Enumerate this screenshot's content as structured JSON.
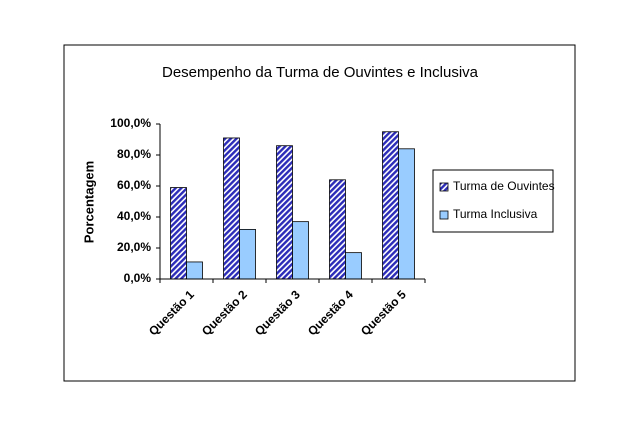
{
  "chart_data": {
    "type": "bar",
    "title": "Desempenho da Turma de Ouvintes e Inclusiva",
    "y_label": "Porcentagem",
    "categories": [
      "Questão 1",
      "Questão 2",
      "Questão 3",
      "Questão 4",
      "Questão 5"
    ],
    "series": [
      {
        "name": "Turma de Ouvintes",
        "color": "#2b2bb8",
        "pattern": "hatch",
        "values": [
          59,
          91,
          86,
          64,
          95
        ]
      },
      {
        "name": "Turma Inclusiva",
        "color": "#99ccff",
        "values": [
          11,
          32,
          37,
          17,
          84
        ]
      }
    ],
    "ylim": [
      0,
      100
    ],
    "yticks": [
      {
        "value": 0,
        "label": "0,0%"
      },
      {
        "value": 20,
        "label": "20,0%"
      },
      {
        "value": 40,
        "label": "40,0%"
      },
      {
        "value": 60,
        "label": "60,0%"
      },
      {
        "value": 80,
        "label": "80,0%"
      },
      {
        "value": 100,
        "label": "100,0%"
      }
    ],
    "grid": false,
    "legend": "right"
  }
}
